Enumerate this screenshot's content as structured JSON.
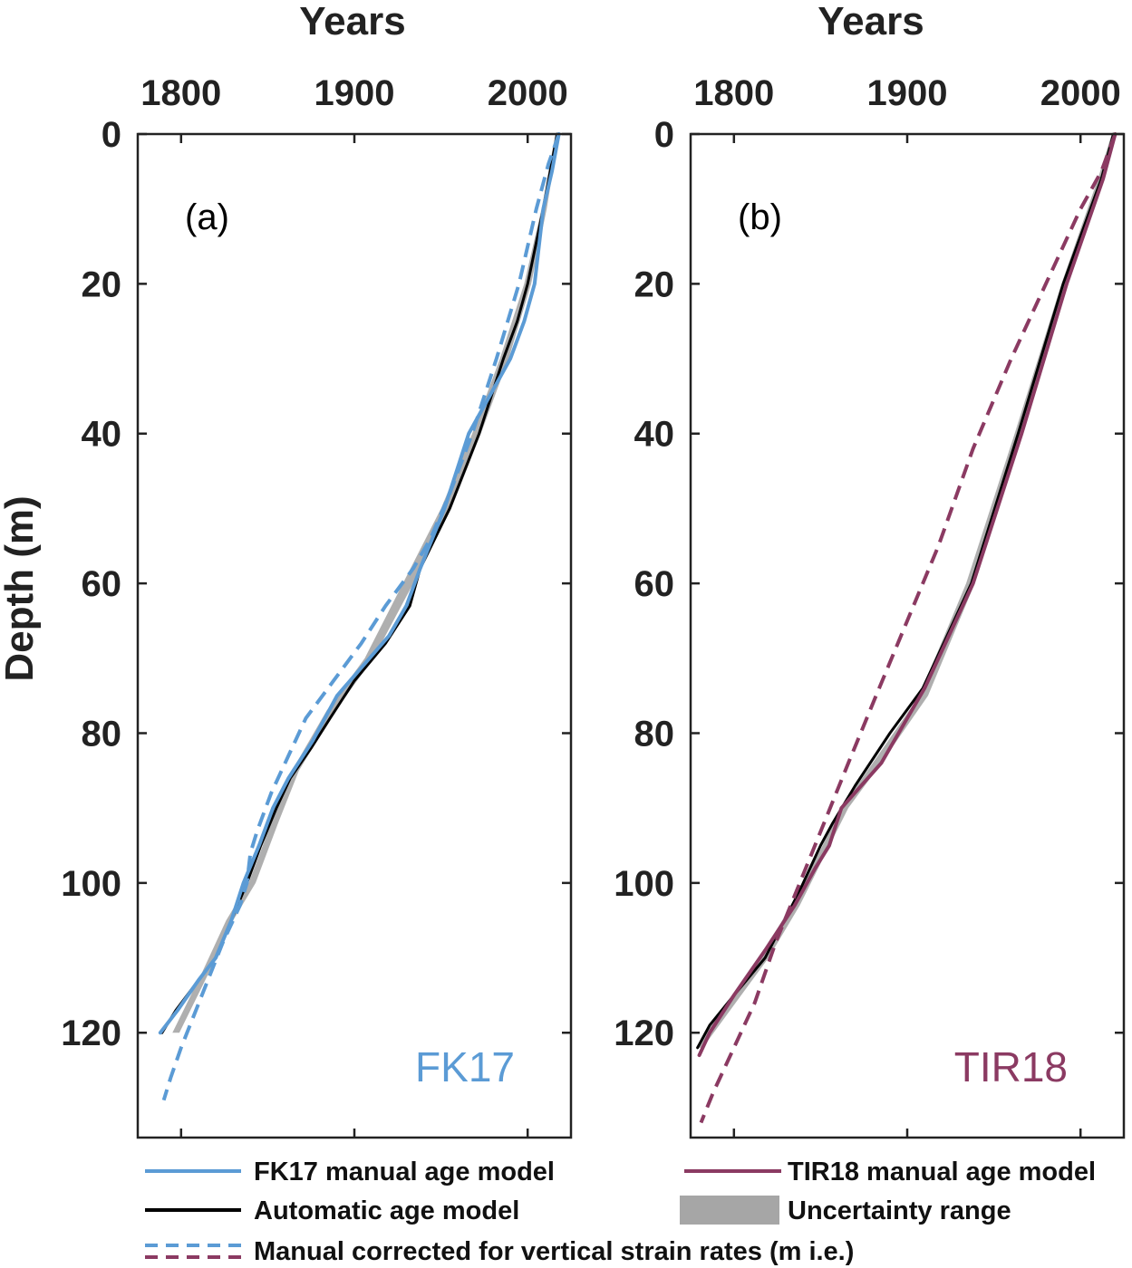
{
  "colors": {
    "fk17": "#5b9bd5",
    "tir18": "#8b3a62",
    "auto": "#000000",
    "uncertainty": "#a6a6a6",
    "axis": "#222222"
  },
  "chart_data": [
    {
      "type": "line",
      "panel_label": "(a)",
      "core_label": "FK17",
      "xlabel": "Years",
      "ylabel": "Depth (m)",
      "xlim": [
        1775,
        2025
      ],
      "ylim": [
        0,
        134
      ],
      "x_axis_position": "top",
      "y_reversed": true,
      "xticks": [
        1800,
        1900,
        2000
      ],
      "yticks": [
        0,
        20,
        40,
        60,
        80,
        100,
        120
      ],
      "grid": false,
      "series": [
        {
          "name": "Uncertainty range",
          "role": "uncertainty",
          "style": "band",
          "x_lo": [
            2016,
            2008,
            1998,
            1984,
            1968,
            1950,
            1928,
            1906,
            1884,
            1864,
            1852,
            1839,
            1826,
            1812,
            1795
          ],
          "x_hi": [
            2018,
            2011,
            2002,
            1989,
            1973,
            1956,
            1934,
            1911,
            1889,
            1868,
            1856,
            1843,
            1830,
            1816,
            1799
          ],
          "y": [
            0,
            10,
            20,
            30,
            40,
            50,
            60,
            70,
            77,
            85,
            92,
            100,
            105,
            112,
            120
          ]
        },
        {
          "name": "Automatic age model",
          "role": "auto",
          "style": "solid",
          "x": [
            2017,
            2013,
            2009,
            2000,
            1994,
            1986,
            1972,
            1955,
            1938,
            1932,
            1918,
            1900,
            1886,
            1875,
            1863,
            1855,
            1846,
            1838,
            1829,
            1820,
            1810,
            1797,
            1789
          ],
          "y": [
            0,
            5,
            10,
            20,
            25,
            30,
            40,
            50,
            58,
            63,
            68,
            73,
            78,
            82,
            86,
            90,
            95,
            100,
            105,
            110,
            113,
            117,
            120
          ]
        },
        {
          "name": "FK17 manual age model",
          "role": "fk17",
          "style": "solid",
          "x": [
            2018,
            2014,
            2009,
            2004,
            1998,
            1990,
            1978,
            1966,
            1952,
            1938,
            1930,
            1920,
            1905,
            1890,
            1876,
            1862,
            1853,
            1845,
            1836,
            1829,
            1820,
            1810,
            1798,
            1788
          ],
          "y": [
            0,
            5,
            10,
            20,
            25,
            30,
            35,
            40,
            50,
            58,
            63,
            67,
            71,
            75,
            81,
            86,
            90,
            95,
            100,
            105,
            110,
            113,
            117,
            120
          ]
        },
        {
          "name": "Manual corrected for vertical strain rates (m i.e.)",
          "role": "fk17",
          "style": "dashed",
          "x": [
            2018,
            2012,
            2005,
            1995,
            1982,
            1968,
            1955,
            1944,
            1934,
            1918,
            1904,
            1888,
            1872,
            1860,
            1852,
            1844,
            1840,
            1838,
            1834,
            1824,
            1812,
            1800,
            1794,
            1790
          ],
          "y": [
            0,
            4,
            10,
            20,
            30,
            40,
            48,
            54,
            58,
            63,
            68,
            73,
            78,
            84,
            88,
            93,
            96,
            100,
            103,
            108,
            115,
            122,
            126,
            129
          ]
        }
      ]
    },
    {
      "type": "line",
      "panel_label": "(b)",
      "core_label": "TIR18",
      "xlabel": "Years",
      "ylabel": "",
      "xlim": [
        1775,
        2025
      ],
      "ylim": [
        0,
        134
      ],
      "x_axis_position": "top",
      "y_reversed": true,
      "xticks": [
        1800,
        1900,
        2000
      ],
      "yticks": [
        0,
        20,
        40,
        60,
        80,
        100,
        120
      ],
      "grid": false,
      "series": [
        {
          "name": "Uncertainty range",
          "role": "uncertainty",
          "style": "band",
          "x_lo": [
            2018,
            2010,
            1989,
            1962,
            1934,
            1907,
            1880,
            1862,
            1849,
            1833,
            1815,
            1796,
            1778
          ],
          "x_hi": [
            2020,
            2013,
            1992,
            1966,
            1939,
            1912,
            1885,
            1866,
            1853,
            1838,
            1820,
            1801,
            1782
          ],
          "y": [
            0,
            6,
            20,
            40,
            60,
            75,
            84,
            90,
            96,
            103,
            110,
            116,
            122
          ]
        },
        {
          "name": "Automatic age model",
          "role": "auto",
          "style": "solid",
          "x": [
            2019,
            2012,
            1990,
            1964,
            1937,
            1909,
            1890,
            1870,
            1857,
            1850,
            1838,
            1818,
            1800,
            1786,
            1779
          ],
          "y": [
            0,
            6,
            20,
            40,
            60,
            74,
            80,
            87,
            92,
            95,
            101,
            110,
            115,
            119,
            122
          ]
        },
        {
          "name": "TIR18 manual age model",
          "role": "tir18",
          "style": "solid",
          "x": [
            2020,
            2013,
            1992,
            1966,
            1938,
            1910,
            1885,
            1862,
            1855,
            1847,
            1835,
            1818,
            1800,
            1786,
            1780
          ],
          "y": [
            0,
            6,
            20,
            40,
            60,
            74,
            84,
            90,
            95,
            98,
            103,
            109,
            115,
            120,
            123
          ]
        },
        {
          "name": "Manual corrected for vertical strain rates (m i.e.)",
          "role": "tir18",
          "style": "dashed",
          "x": [
            2020,
            2012,
            2000,
            1980,
            1960,
            1938,
            1918,
            1900,
            1882,
            1866,
            1852,
            1838,
            1824,
            1812,
            1800,
            1788,
            1781
          ],
          "y": [
            0,
            5,
            10,
            20,
            30,
            42,
            55,
            65,
            75,
            84,
            92,
            100,
            108,
            116,
            122,
            128,
            132
          ]
        }
      ]
    }
  ],
  "legend": {
    "fk17_manual": "FK17 manual age model",
    "tir18_manual": "TIR18 manual age model",
    "automatic": "Automatic age model",
    "uncertainty": "Uncertainty range",
    "corrected": "Manual corrected for vertical strain rates (m i.e.)"
  }
}
